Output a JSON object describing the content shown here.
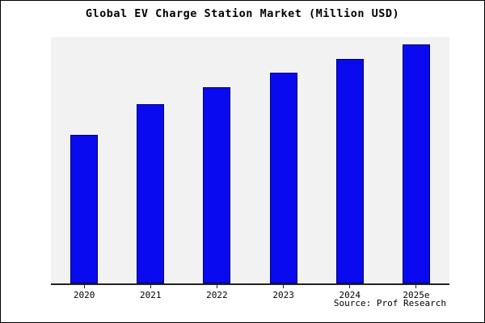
{
  "title": "Global EV Charge Station Market (Million USD)",
  "source": "Source: Prof Research",
  "colors": {
    "bar_fill": "#0a0af0",
    "bar_edge": "#000066",
    "plot_bg": "#f2f2f2",
    "axis": "#222222",
    "page_bg": "#ffffff",
    "border": "#000000"
  },
  "chart_data": {
    "type": "bar",
    "categories": [
      "2020",
      "2021",
      "2022",
      "2023",
      "2024",
      "2025e"
    ],
    "values": [
      62,
      75,
      82,
      88,
      94,
      100
    ],
    "title": "Global EV Charge Station Market (Million USD)",
    "xlabel": "",
    "ylabel": "",
    "ylim": [
      0,
      103
    ],
    "grid": false,
    "legend": false,
    "note": "No y-axis tick labels are shown in the figure; values are estimated relative bar heights as a percentage of the tallest bar (2025e = 100)."
  }
}
